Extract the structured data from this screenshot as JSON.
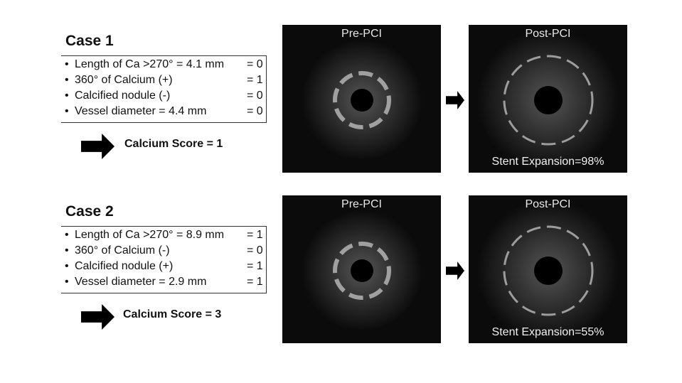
{
  "cases": [
    {
      "title": "Case 1",
      "criteria": [
        {
          "text": "Length of Ca >270° = 4.1 mm",
          "score": "= 0"
        },
        {
          "text": "360° of Calcium (+)",
          "score": "= 1"
        },
        {
          "text": "Calcified nodule (-)",
          "score": "= 0"
        },
        {
          "text": "Vessel diameter = 4.4 mm",
          "score": "= 0"
        }
      ],
      "calcium_score": "Calcium Score = 1",
      "images": [
        {
          "label": "Pre-PCI"
        },
        {
          "label": "Post-PCI",
          "caption": "Stent Expansion=98%"
        }
      ]
    },
    {
      "title": "Case 2",
      "criteria": [
        {
          "text": "Length of Ca >270° = 8.9 mm",
          "score": "= 1"
        },
        {
          "text": "360° of Calcium (-)",
          "score": "= 0"
        },
        {
          "text": "Calcified nodule (+)",
          "score": "= 1"
        },
        {
          "text": "Vessel diameter = 2.9 mm",
          "score": "= 1"
        }
      ],
      "calcium_score": "Calcium Score = 3",
      "images": [
        {
          "label": "Pre-PCI"
        },
        {
          "label": "Post-PCI",
          "caption": "Stent Expansion=55%"
        }
      ]
    }
  ]
}
